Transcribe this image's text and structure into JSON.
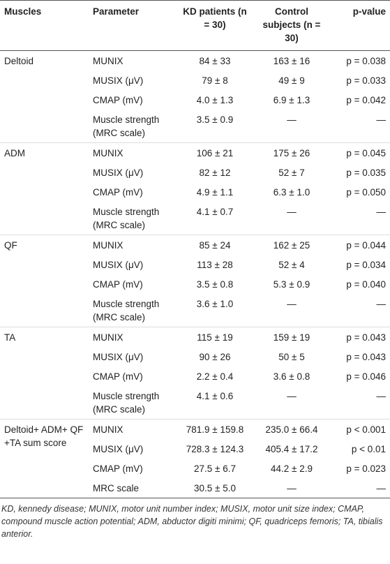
{
  "table": {
    "headers": [
      "Muscles",
      "Parameter",
      "KD patients (n = 30)",
      "Control subjects (n = 30)",
      "p-value"
    ],
    "groups": [
      {
        "muscle": "Deltoid",
        "rows": [
          [
            "MUNIX",
            "84 ± 33",
            "163 ± 16",
            "p = 0.038"
          ],
          [
            "MUSIX (μV)",
            "79 ± 8",
            "49 ± 9",
            "p = 0.033"
          ],
          [
            "CMAP (mV)",
            "4.0 ± 1.3",
            "6.9 ± 1.3",
            "p = 0.042"
          ],
          [
            "Muscle strength (MRC scale)",
            "3.5 ± 0.9",
            "—",
            "—"
          ]
        ]
      },
      {
        "muscle": "ADM",
        "rows": [
          [
            "MUNIX",
            "106 ± 21",
            "175 ± 26",
            "p = 0.045"
          ],
          [
            "MUSIX (μV)",
            "82 ± 12",
            "52 ± 7",
            "p = 0.035"
          ],
          [
            "CMAP (mV)",
            "4.9 ± 1.1",
            "6.3 ± 1.0",
            "p = 0.050"
          ],
          [
            "Muscle strength (MRC scale)",
            "4.1 ± 0.7",
            "—",
            "—"
          ]
        ]
      },
      {
        "muscle": "QF",
        "rows": [
          [
            "MUNIX",
            "85 ± 24",
            "162 ± 25",
            "p = 0.044"
          ],
          [
            "MUSIX (μV)",
            "113 ± 28",
            "52 ± 4",
            "p = 0.034"
          ],
          [
            "CMAP (mV)",
            "3.5 ± 0.8",
            "5.3 ± 0.9",
            "p = 0.040"
          ],
          [
            "Muscle strength (MRC scale)",
            "3.6 ± 1.0",
            "—",
            "—"
          ]
        ]
      },
      {
        "muscle": "TA",
        "rows": [
          [
            "MUNIX",
            "115 ± 19",
            "159 ± 19",
            "p = 0.043"
          ],
          [
            "MUSIX (μV)",
            "90 ± 26",
            "50 ± 5",
            "p = 0.043"
          ],
          [
            "CMAP (mV)",
            "2.2 ± 0.4",
            "3.6 ± 0.8",
            "p = 0.046"
          ],
          [
            "Muscle strength (MRC scale)",
            "4.1 ± 0.6",
            "—",
            "—"
          ]
        ]
      },
      {
        "muscle": "Deltoid+ ADM+ QF +TA sum score",
        "rows": [
          [
            "MUNIX",
            "781.9 ± 159.8",
            "235.0 ± 66.4",
            "p < 0.001"
          ],
          [
            "MUSIX (μV)",
            "728.3 ± 124.3",
            "405.4 ± 17.2",
            "p < 0.01"
          ],
          [
            "CMAP (mV)",
            "27.5 ± 6.7",
            "44.2 ± 2.9",
            "p = 0.023"
          ],
          [
            "MRC scale",
            "30.5 ± 5.0",
            "—",
            "—"
          ]
        ]
      }
    ],
    "footnote": "KD, kennedy disease; MUNIX, motor unit number index; MUSIX, motor unit size index; CMAP, compound muscle action potential; ADM, abductor digiti minimi; QF, quadriceps femoris; TA, tibialis anterior."
  }
}
